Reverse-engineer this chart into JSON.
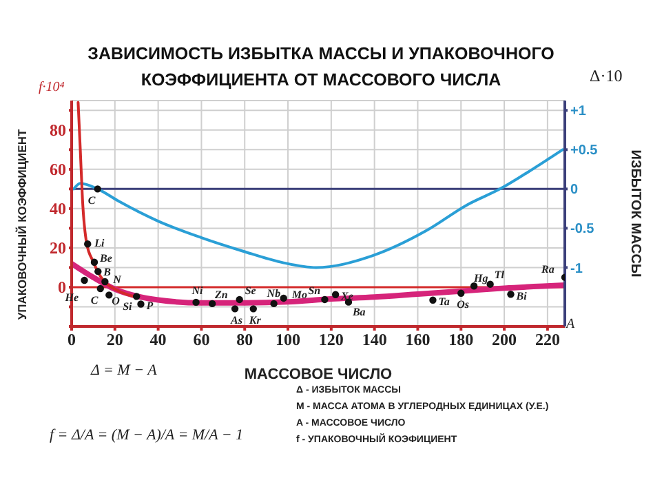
{
  "chart_data": {
    "type": "line",
    "title": "ЗАВИСИМОСТЬ ИЗБЫТКА МАССЫ И УПАКОВОЧНОГО КОЭФФИЦИЕНТА ОТ МАССОВОГО ЧИСЛА",
    "xlabel": "МАССОВОЕ ЧИСЛО",
    "ylabel": "УПАКОВОЧНЫЙ КОЭФФИЦИЕНТ",
    "y2label": "ИЗБЫТОК МАССЫ",
    "annotations": [
      "f·10⁴",
      "Δ·10",
      "A",
      "Δ = M − A",
      "f = Δ/A = (M − A)/A = M/A − 1",
      "Δ - ИЗБЫТОК МАССЫ",
      "M - МАССА АТОМА В УГЛЕРОДНЫХ ЕДИНИЦАХ (У.Е.)",
      "A - МАССОВОЕ ЧИСЛО",
      "f - УПАКОВОЧНЫЙ КОЭФИЦИЕНТ"
    ],
    "xlim": [
      0,
      228
    ],
    "xticks": [
      0,
      20,
      40,
      60,
      80,
      100,
      120,
      140,
      160,
      180,
      200,
      220
    ],
    "ylim": [
      -20,
      95
    ],
    "yticks": [
      {
        "value": -20,
        "label": null
      },
      {
        "value": -10,
        "label": null
      },
      0,
      {
        "value": 10,
        "label": null
      },
      20,
      {
        "value": 30,
        "label": null
      },
      40,
      {
        "value": 50,
        "label": null
      },
      60,
      {
        "value": 70,
        "label": null
      },
      80,
      {
        "value": 90,
        "label": null
      }
    ],
    "y2lim": [
      -1.75,
      1.125
    ],
    "y2ticks": [
      {
        "value": 1,
        "label": "+1"
      },
      {
        "value": 0.5,
        "label": "+0.5"
      },
      0,
      -0.5,
      -1
    ],
    "grid": true,
    "ref_lines": [
      {
        "axis": "y",
        "value": 0,
        "label": null,
        "color": "#d42a2a"
      },
      {
        "axis": "y2",
        "value": 0,
        "label": null,
        "color": "#3b3f7a"
      }
    ],
    "series": [
      {
        "type": "line",
        "axis": "y2",
        "color": "#2a9fd6",
        "x": [
          1,
          4,
          12,
          22,
          40,
          60,
          79,
          98,
          113,
          139,
          164,
          183,
          198,
          213,
          227
        ],
        "values": [
          0,
          0.07,
          0,
          -0.16,
          -0.41,
          -0.62,
          -0.79,
          -0.94,
          -1.0,
          -0.85,
          -0.53,
          -0.2,
          0,
          0.25,
          0.5
        ]
      },
      {
        "type": "line",
        "color": "#d6247a",
        "x": [
          0,
          10,
          20,
          30,
          40,
          60,
          80,
          100,
          120,
          140,
          160,
          180,
          200,
          228
        ],
        "values": [
          12,
          5,
          -1,
          -4.5,
          -6.5,
          -8,
          -8,
          -7.5,
          -6,
          -5,
          -3.5,
          -2,
          -0.5,
          1
        ]
      },
      {
        "type": "line",
        "color": "#d42a2a",
        "x": [
          3,
          4,
          5,
          7,
          10,
          12,
          15,
          20,
          25,
          30
        ],
        "values": [
          94,
          70,
          45,
          22,
          13,
          8,
          3,
          -1,
          -3.5,
          -5
        ]
      },
      {
        "type": "scatter",
        "color": "#111111",
        "marker": "circle",
        "x": [
          5.9,
          7.4,
          10.5,
          12.2,
          15.4,
          13.3,
          17.3,
          30,
          32,
          57.5,
          65,
          75.5,
          77.6,
          84,
          93.5,
          98,
          117,
          122,
          128,
          167,
          180,
          186,
          193.5,
          203,
          228
        ],
        "values": [
          3.5,
          22,
          12.7,
          8,
          2.8,
          -0.7,
          -4,
          -4.7,
          -8.6,
          -7.7,
          -8.4,
          -11,
          -6.3,
          -11,
          -8.4,
          -5.6,
          -6.3,
          -3.8,
          -7.6,
          -6.6,
          -3.1,
          0.6,
          1.5,
          -3.6,
          5
        ],
        "value_labels": [
          "He",
          "Li",
          "Be",
          "B",
          "N",
          "C",
          "O",
          "Si",
          "P",
          "Ni",
          "Zn",
          "As",
          "Se",
          "Kr",
          "Nb",
          "Mo",
          "Sn",
          "Xe",
          "Ba",
          "Ta",
          "Os",
          "Hg",
          "Tl",
          "Bi",
          "Ra"
        ]
      },
      {
        "type": "scatter",
        "axis": "y2",
        "color": "#111111",
        "marker": "circle",
        "x": [
          12
        ],
        "values": [
          0
        ],
        "value_labels": [
          "C"
        ]
      }
    ]
  }
}
